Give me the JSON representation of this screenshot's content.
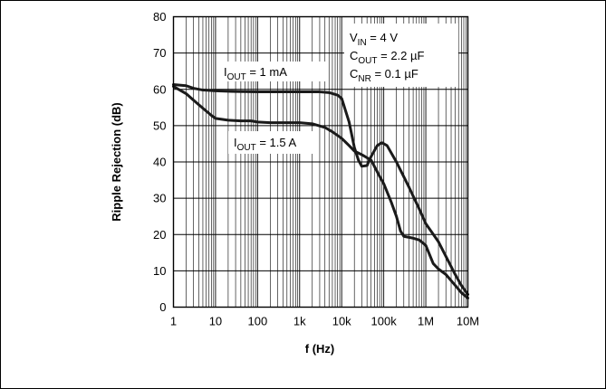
{
  "chart_data": {
    "type": "line",
    "xlabel": "f (Hz)",
    "ylabel": "Ripple Rejection (dB)",
    "x_scale": "log",
    "xlim": [
      1,
      10000000
    ],
    "ylim": [
      0,
      80
    ],
    "grid": true,
    "x_ticks": [
      {
        "value": 1,
        "label": "1"
      },
      {
        "value": 10,
        "label": "10"
      },
      {
        "value": 100,
        "label": "100"
      },
      {
        "value": 1000,
        "label": "1k"
      },
      {
        "value": 10000,
        "label": "10k"
      },
      {
        "value": 100000,
        "label": "100k"
      },
      {
        "value": 1000000,
        "label": "1M"
      },
      {
        "value": 10000000,
        "label": "10M"
      }
    ],
    "y_ticks": [
      0,
      10,
      20,
      30,
      40,
      50,
      60,
      70,
      80
    ],
    "conditions": [
      {
        "sym": "V",
        "sub": "IN",
        "rest": " = 4 V"
      },
      {
        "sym": "C",
        "sub": "OUT",
        "rest": " = 2.2 µF"
      },
      {
        "sym": "C",
        "sub": "NR",
        "rest": " = 0.1 µF"
      }
    ],
    "series": [
      {
        "label_sym": "I",
        "label_sub": "OUT",
        "label_rest": " = 1 mA",
        "points": [
          [
            1,
            61.3
          ],
          [
            2,
            61
          ],
          [
            3,
            60.3
          ],
          [
            5,
            59.8
          ],
          [
            10,
            59.6
          ],
          [
            30,
            59.4
          ],
          [
            100,
            59.3
          ],
          [
            300,
            59.3
          ],
          [
            1000,
            59.3
          ],
          [
            3000,
            59.3
          ],
          [
            5000,
            59.1
          ],
          [
            8000,
            58.4
          ],
          [
            10000,
            57.5
          ],
          [
            15000,
            51
          ],
          [
            20000,
            44
          ],
          [
            25000,
            40.5
          ],
          [
            30000,
            38.8
          ],
          [
            40000,
            39
          ],
          [
            50000,
            41.5
          ],
          [
            70000,
            44.5
          ],
          [
            90000,
            45.3
          ],
          [
            120000,
            44.5
          ],
          [
            200000,
            40
          ],
          [
            400000,
            33
          ],
          [
            700000,
            27
          ],
          [
            1000000,
            23
          ],
          [
            2000000,
            18
          ],
          [
            3000000,
            14
          ],
          [
            5000000,
            9
          ],
          [
            7000000,
            6
          ],
          [
            10000000,
            3.5
          ]
        ]
      },
      {
        "label_sym": "I",
        "label_sub": "OUT",
        "label_rest": " = 1.5 A",
        "points": [
          [
            1,
            60.8
          ],
          [
            2,
            58.8
          ],
          [
            3,
            57
          ],
          [
            5,
            54.8
          ],
          [
            8,
            52.8
          ],
          [
            10,
            52
          ],
          [
            20,
            51.5
          ],
          [
            40,
            51.3
          ],
          [
            70,
            51.3
          ],
          [
            100,
            51
          ],
          [
            200,
            50.8
          ],
          [
            500,
            50.8
          ],
          [
            1000,
            50.8
          ],
          [
            2000,
            50.5
          ],
          [
            4000,
            49.5
          ],
          [
            6000,
            48.3
          ],
          [
            10000,
            46.5
          ],
          [
            15000,
            44.5
          ],
          [
            20000,
            43
          ],
          [
            30000,
            42
          ],
          [
            50000,
            40.5
          ],
          [
            80000,
            36
          ],
          [
            100000,
            34
          ],
          [
            150000,
            29
          ],
          [
            200000,
            25
          ],
          [
            250000,
            21
          ],
          [
            300000,
            19.5
          ],
          [
            500000,
            19
          ],
          [
            700000,
            18.5
          ],
          [
            1000000,
            17
          ],
          [
            1500000,
            12
          ],
          [
            2000000,
            10.5
          ],
          [
            3000000,
            9
          ],
          [
            5000000,
            6
          ],
          [
            7000000,
            4
          ],
          [
            10000000,
            2.5
          ]
        ]
      }
    ]
  }
}
